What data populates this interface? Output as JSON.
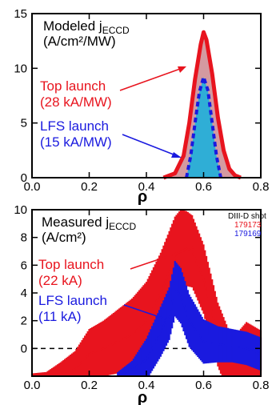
{
  "chart_data": [
    {
      "type": "area",
      "title": "Modeled j",
      "title_sub": "ECCD",
      "ylabel_text": "(A/cm²/MW)",
      "xlabel": "ρ",
      "xlim": [
        0.0,
        0.8
      ],
      "ylim": [
        0,
        15
      ],
      "x_ticks": [
        "0.0",
        "0.2",
        "0.4",
        "0.6",
        "0.8"
      ],
      "y_ticks": [
        "0",
        "5",
        "10",
        "15"
      ],
      "series": [
        {
          "name": "Top launch",
          "annotation": [
            "Top launch",
            "(28 kA/MW)"
          ],
          "color": "#e8141e",
          "fill": "#d49aa0",
          "style": "solid",
          "x": [
            0.46,
            0.5,
            0.53,
            0.55,
            0.57,
            0.59,
            0.6,
            0.61,
            0.63,
            0.65,
            0.67,
            0.69,
            0.71,
            0.73
          ],
          "y": [
            0.0,
            0.4,
            2.0,
            5.0,
            9.0,
            12.2,
            13.3,
            12.6,
            9.5,
            5.5,
            2.5,
            0.8,
            0.2,
            0.0
          ]
        },
        {
          "name": "LFS launch",
          "annotation": [
            "LFS launch",
            "(15 kA/MW)"
          ],
          "color": "#1a1adf",
          "fill": "#2faed6",
          "style": "dashed",
          "x": [
            0.54,
            0.555,
            0.57,
            0.585,
            0.6,
            0.615,
            0.63,
            0.645,
            0.66
          ],
          "y": [
            0.0,
            2.0,
            5.0,
            7.8,
            9.2,
            8.0,
            5.0,
            2.0,
            0.0
          ]
        }
      ]
    },
    {
      "type": "line",
      "title": "Measured j",
      "title_sub": "ECCD",
      "ylabel_text": "(A/cm²)",
      "xlabel": "ρ",
      "xlim": [
        0.0,
        0.8
      ],
      "ylim": [
        -2,
        10
      ],
      "x_ticks": [
        "0.0",
        "0.2",
        "0.4",
        "0.6",
        "0.8"
      ],
      "y_ticks": [
        "0",
        "2",
        "4",
        "6",
        "8",
        "10"
      ],
      "shot_label": "DIII-D shot",
      "series": [
        {
          "name": "179173",
          "annotation": [
            "Top launch",
            "(22 kA)"
          ],
          "color": "#e8141e",
          "x": [
            0.0,
            0.05,
            0.1,
            0.15,
            0.2,
            0.25,
            0.3,
            0.35,
            0.4,
            0.45,
            0.5,
            0.52,
            0.54,
            0.56,
            0.6,
            0.65,
            0.7,
            0.75,
            0.8
          ],
          "y": [
            -2.0,
            -2.0,
            -1.8,
            -1.5,
            -0.4,
            0.0,
            0.5,
            1.0,
            2.0,
            4.0,
            6.5,
            7.0,
            7.2,
            7.0,
            5.0,
            1.0,
            -1.6,
            -0.6,
            -1.2
          ],
          "err": [
            0.2,
            0.3,
            0.8,
            1.3,
            1.8,
            2.0,
            2.3,
            2.6,
            2.8,
            2.9,
            3.0,
            3.0,
            2.7,
            2.6,
            2.5,
            2.3,
            2.3,
            2.5,
            2.5
          ]
        },
        {
          "name": "179169",
          "annotation": [
            "LFS launch",
            "(11 kA)"
          ],
          "color": "#1a1adf",
          "x": [
            0.3,
            0.35,
            0.4,
            0.45,
            0.48,
            0.5,
            0.52,
            0.55,
            0.6,
            0.65,
            0.7,
            0.75,
            0.8
          ],
          "y": [
            -2.0,
            -1.5,
            -0.8,
            1.2,
            2.5,
            4.3,
            3.8,
            2.0,
            0.5,
            0.3,
            0.2,
            0.0,
            -0.4
          ],
          "err": [
            0.3,
            0.6,
            1.5,
            1.8,
            1.9,
            2.0,
            2.0,
            1.9,
            1.6,
            1.3,
            1.2,
            1.2,
            1.2
          ]
        }
      ]
    }
  ]
}
